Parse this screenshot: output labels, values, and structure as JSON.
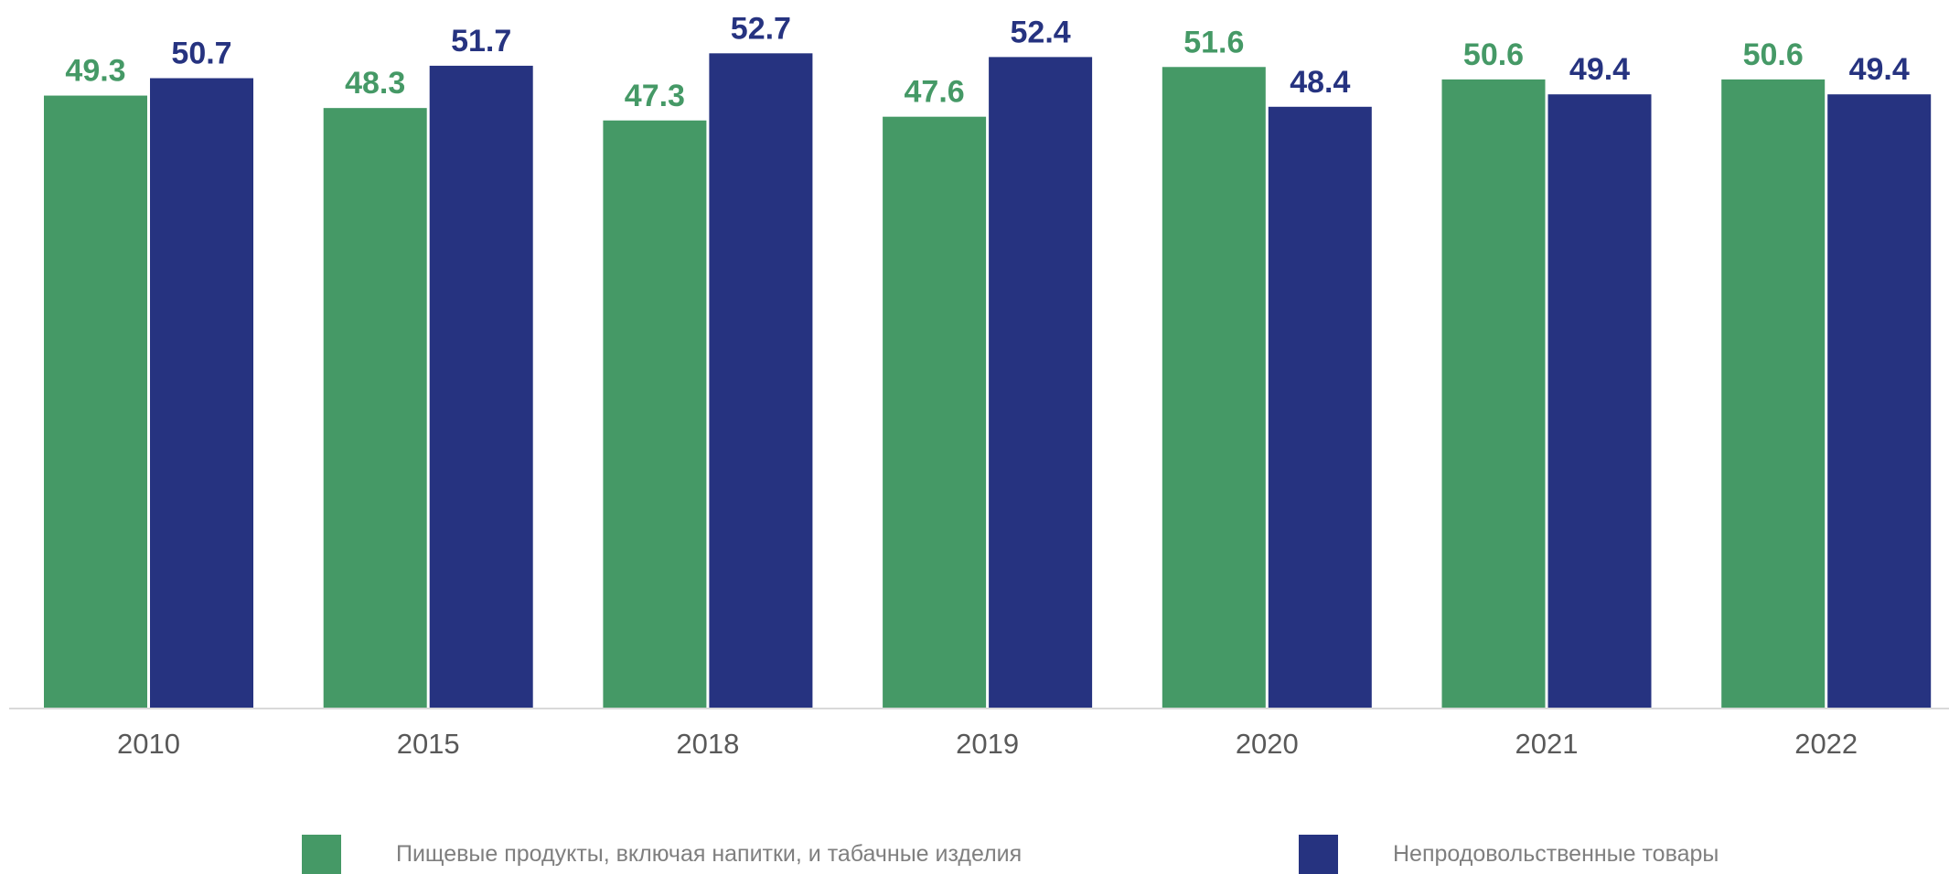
{
  "chart_data": {
    "type": "bar",
    "title": "",
    "xlabel": "",
    "ylabel": "",
    "categories": [
      "2010",
      "2015",
      "2018",
      "2019",
      "2020",
      "2021",
      "2022"
    ],
    "series": [
      {
        "name": "Пищевые продукты, включая напитки, и табачные изделия",
        "color": "#459966",
        "values": [
          49.3,
          48.3,
          47.3,
          47.6,
          51.6,
          50.6,
          50.6
        ],
        "labels": [
          "49.3",
          "48.3",
          "47.3",
          "47.6",
          "51.6",
          "50.6",
          "50.6"
        ]
      },
      {
        "name": "Непродовольственные товары",
        "color": "#263380",
        "values": [
          50.7,
          51.7,
          52.7,
          52.4,
          48.4,
          49.4,
          49.4
        ],
        "labels": [
          "50.7",
          "51.7",
          "52.7",
          "52.4",
          "48.4",
          "49.4",
          "49.4"
        ]
      }
    ],
    "ylim": [
      0,
      53.9
    ],
    "grid": false,
    "legend_position": "bottom",
    "axis_color": "#d9d9d9"
  }
}
